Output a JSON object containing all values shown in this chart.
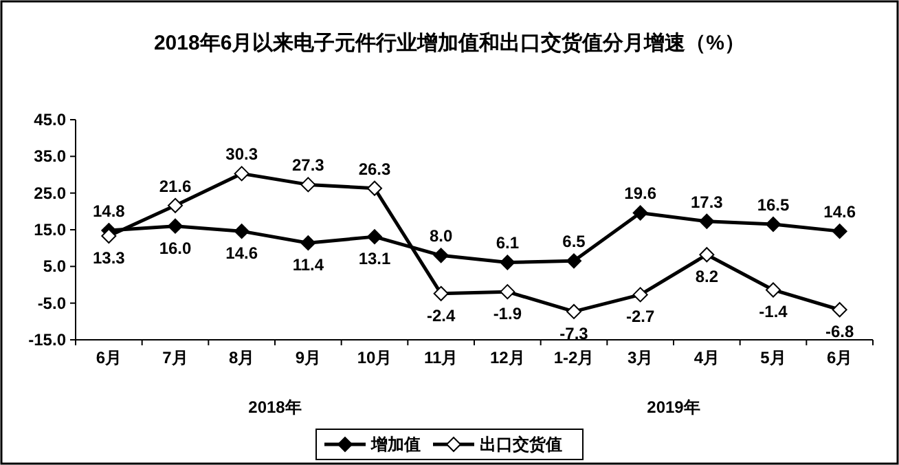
{
  "chart_data": {
    "type": "line",
    "title": "2018年6月以来电子元件行业增加值和出口交货值分月增速（%）",
    "categories": [
      "6月",
      "7月",
      "8月",
      "9月",
      "10月",
      "11月",
      "12月",
      "1-2月",
      "3月",
      "4月",
      "5月",
      "6月"
    ],
    "series": [
      {
        "name": "增加值",
        "color": "#000000",
        "marker": "diamond",
        "values": [
          14.8,
          16.0,
          14.6,
          11.4,
          13.1,
          8.0,
          6.1,
          6.5,
          19.6,
          17.3,
          16.5,
          14.6
        ],
        "value_labels": [
          "14.8",
          "16.0",
          "14.6",
          "11.4",
          "13.1",
          "8.0",
          "6.1",
          "6.5",
          "19.6",
          "17.3",
          "16.5",
          "14.6"
        ]
      },
      {
        "name": "出口交货值",
        "color": "#000000",
        "marker": "diamond",
        "values": [
          13.3,
          21.6,
          30.3,
          27.3,
          26.3,
          -2.4,
          -1.9,
          -7.3,
          -2.7,
          8.2,
          -1.4,
          -6.8
        ],
        "value_labels": [
          "13.3",
          "21.6",
          "30.3",
          "27.3",
          "26.3",
          "-2.4",
          "-1.9",
          "-7.3",
          "-2.7",
          "8.2",
          "-1.4",
          "-6.8"
        ]
      }
    ],
    "ylim": [
      -15,
      45
    ],
    "yticks": [
      {
        "value": -15,
        "label": "-15.0"
      },
      {
        "value": -5,
        "label": "-5.0"
      },
      {
        "value": 5,
        "label": "5.0"
      },
      {
        "value": 15,
        "label": "15.0"
      },
      {
        "value": 25,
        "label": "25.0"
      },
      {
        "value": 35,
        "label": "35.0"
      },
      {
        "value": 45,
        "label": "45.0"
      }
    ],
    "legend": "bottom",
    "annotations": [
      "2018年",
      "2019年"
    ]
  }
}
